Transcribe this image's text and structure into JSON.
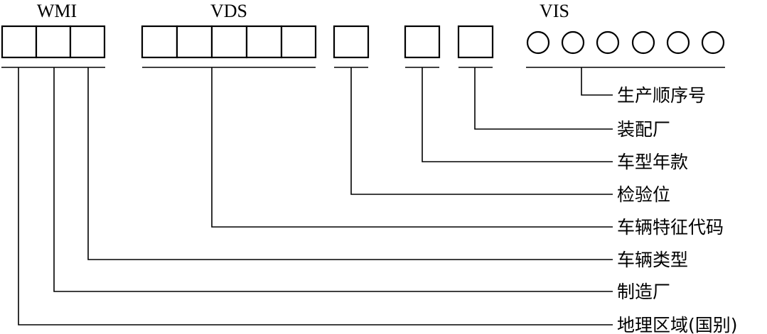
{
  "headers": {
    "wmi": "WMI",
    "vds": "VDS",
    "vis": "VIS"
  },
  "labels": [
    "生产顺序号",
    "装配厂",
    "车型年款",
    "检验位",
    "车辆特征代码",
    "车辆类型",
    "制造厂",
    "地理区域(国别)"
  ]
}
